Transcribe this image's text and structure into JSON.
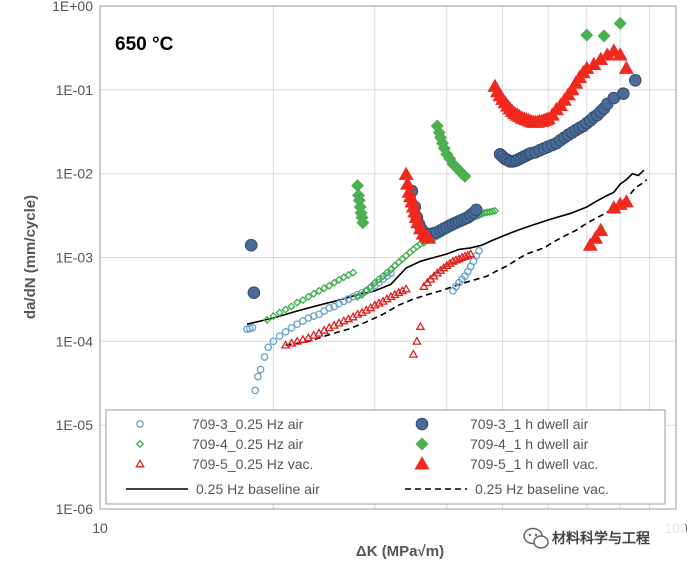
{
  "chart_data": {
    "type": "scatter",
    "title": "",
    "xlabel": "ΔK (MPa√m)",
    "ylabel": "da/dN (mm/cycle)",
    "x_scale": "log",
    "y_scale": "log",
    "xlim": [
      10,
      100
    ],
    "ylim": [
      1e-06,
      1
    ],
    "x_tick_labels": [
      "10",
      "100"
    ],
    "y_tick_labels": [
      "1E-06",
      "1E-05",
      "1E-04",
      "1E-03",
      "1E-02",
      "1E-01",
      "1E+00"
    ],
    "grid": true,
    "annotation": "650 °C",
    "legend_position": "bottom",
    "series": [
      {
        "name": "709-3_0.25 Hz air",
        "marker": "circle-open",
        "color": "#6aa0c8",
        "size": "small",
        "x": [
          18.0,
          18.2,
          18.4,
          18.6,
          18.8,
          19.0,
          19.3,
          19.6,
          20.0,
          20.5,
          21.0,
          21.5,
          22.0,
          22.5,
          23.0,
          23.5,
          24.0,
          24.5,
          25.0,
          25.5,
          26.0,
          26.5,
          27.0,
          27.5,
          28.0,
          28.5,
          29.0,
          29.5,
          30.0,
          30.5,
          31.0,
          31.5,
          32.0,
          41.0,
          41.5,
          42.0,
          42.5,
          43.0,
          43.5,
          44.0,
          44.5,
          45.0,
          45.5
        ],
        "y": [
          0.00014,
          0.000142,
          0.000145,
          2.6e-05,
          3.8e-05,
          4.6e-05,
          6.5e-05,
          8.5e-05,
          0.0001,
          0.000115,
          0.00013,
          0.000145,
          0.00016,
          0.000175,
          0.00019,
          0.0002,
          0.00021,
          0.00023,
          0.00025,
          0.00026,
          0.00028,
          0.0003,
          0.00032,
          0.00034,
          0.00036,
          0.00038,
          0.0004,
          0.00043,
          0.00046,
          0.0005,
          0.00055,
          0.0006,
          0.00065,
          0.0004,
          0.00045,
          0.0005,
          0.00055,
          0.0006,
          0.00068,
          0.00078,
          0.0009,
          0.00105,
          0.0012
        ]
      },
      {
        "name": "709-4_0.25 Hz air",
        "marker": "diamond-open",
        "color": "#3fae4a",
        "size": "small",
        "x": [
          19.5,
          20.0,
          20.5,
          21.0,
          21.5,
          22.0,
          22.5,
          23.0,
          23.5,
          24.0,
          24.5,
          25.0,
          25.5,
          26.0,
          26.5,
          27.0,
          27.5,
          28.0,
          28.5,
          29.0,
          29.5,
          30.0,
          30.5,
          31.0,
          31.5,
          32.0,
          32.5,
          33.0,
          33.5,
          34.0,
          34.5,
          35.0,
          35.5,
          36.0,
          36.5,
          37.0,
          37.5,
          38.0,
          38.5,
          39.0,
          39.5,
          40.0,
          40.5,
          41.0,
          41.5,
          42.0,
          42.5,
          43.0,
          43.5,
          44.0,
          44.5,
          45.0,
          45.5,
          46.0,
          46.5,
          47.0,
          47.5,
          48.0,
          48.5
        ],
        "y": [
          0.00018,
          0.0002,
          0.00022,
          0.00024,
          0.00026,
          0.00029,
          0.00031,
          0.00034,
          0.00037,
          0.0004,
          0.00043,
          0.00046,
          0.0005,
          0.00054,
          0.00058,
          0.00062,
          0.00066,
          0.00034,
          0.00036,
          0.0004,
          0.00045,
          0.0005,
          0.00055,
          0.0006,
          0.00066,
          0.00072,
          0.0008,
          0.00088,
          0.00096,
          0.00105,
          0.00115,
          0.00125,
          0.00135,
          0.00145,
          0.0015,
          0.0016,
          0.00165,
          0.0017,
          0.0018,
          0.0019,
          0.002,
          0.0021,
          0.0022,
          0.0023,
          0.0024,
          0.0025,
          0.0026,
          0.0027,
          0.0028,
          0.0029,
          0.003,
          0.0031,
          0.0032,
          0.0033,
          0.0034,
          0.00345,
          0.0035,
          0.00355,
          0.0036
        ]
      },
      {
        "name": "709-5_0.25 Hz vac.",
        "marker": "triangle-open",
        "color": "#e0201c",
        "size": "small",
        "x": [
          21.0,
          21.5,
          22.0,
          22.5,
          23.0,
          23.5,
          24.0,
          24.5,
          25.0,
          25.5,
          26.0,
          26.5,
          27.0,
          27.5,
          28.0,
          28.5,
          29.0,
          29.5,
          30.0,
          30.5,
          31.0,
          31.5,
          32.0,
          32.5,
          33.0,
          33.5,
          34.0,
          35.0,
          35.5,
          36.0,
          36.5,
          37.0,
          37.5,
          38.0,
          38.5,
          39.0,
          39.5,
          40.0,
          40.5,
          41.0,
          41.5,
          42.0,
          42.5,
          43.0,
          43.5,
          44.0
        ],
        "y": [
          9e-05,
          9.5e-05,
          0.0001,
          0.000105,
          0.00011,
          0.000118,
          0.000125,
          0.000135,
          0.000145,
          0.000155,
          0.000165,
          0.000175,
          0.000185,
          0.000195,
          0.00021,
          0.00022,
          0.000235,
          0.00025,
          0.00027,
          0.000285,
          0.0003,
          0.00032,
          0.00034,
          0.00036,
          0.00038,
          0.0004,
          0.00042,
          7e-05,
          0.0001,
          0.00015,
          0.00045,
          0.0005,
          0.00055,
          0.0006,
          0.00065,
          0.0007,
          0.00075,
          0.0008,
          0.00085,
          0.0009,
          0.00093,
          0.00096,
          0.001,
          0.00103,
          0.00106,
          0.0011
        ]
      },
      {
        "name": "709-3_1 h dwell air",
        "marker": "circle-filled",
        "color": "#4a6b95",
        "size": "large",
        "x": [
          18.3,
          18.5,
          34.8,
          35.2,
          35.5,
          35.8,
          36.1,
          36.5,
          37.0,
          37.5,
          38.0,
          38.5,
          39.0,
          39.5,
          40.0,
          40.5,
          41.0,
          41.5,
          42.0,
          42.5,
          43.0,
          43.5,
          44.0,
          44.5,
          45.0,
          49.5,
          50.0,
          50.5,
          51.0,
          51.5,
          52.0,
          52.5,
          53.0,
          53.5,
          54.0,
          54.5,
          55.0,
          55.5,
          56.0,
          57.0,
          58.0,
          59.0,
          60.0,
          61.0,
          62.0,
          63.0,
          64.0,
          65.0,
          66.0,
          67.0,
          68.0,
          69.0,
          70.0,
          71.0,
          72.0,
          73.0,
          74.0,
          75.0,
          76.0,
          78.0,
          81.0,
          85.0
        ],
        "y": [
          0.0014,
          0.00038,
          0.0062,
          0.004,
          0.003,
          0.0025,
          0.0022,
          0.002,
          0.0019,
          0.0019,
          0.00195,
          0.002,
          0.0021,
          0.0022,
          0.0023,
          0.0024,
          0.0025,
          0.0026,
          0.0027,
          0.0028,
          0.0029,
          0.003,
          0.0032,
          0.0034,
          0.0037,
          0.017,
          0.016,
          0.015,
          0.0145,
          0.014,
          0.014,
          0.0142,
          0.0145,
          0.015,
          0.0155,
          0.016,
          0.0165,
          0.017,
          0.0175,
          0.018,
          0.019,
          0.02,
          0.021,
          0.022,
          0.023,
          0.025,
          0.027,
          0.029,
          0.031,
          0.033,
          0.035,
          0.037,
          0.04,
          0.043,
          0.047,
          0.05,
          0.055,
          0.06,
          0.068,
          0.08,
          0.09,
          0.13
        ]
      },
      {
        "name": "709-4_1 h dwell air",
        "marker": "diamond-filled",
        "color": "#4caf50",
        "size": "large",
        "x": [
          28.0,
          28.1,
          28.2,
          28.3,
          28.4,
          28.5,
          28.6,
          38.5,
          38.8,
          39.0,
          39.3,
          39.6,
          40.0,
          40.5,
          41.0,
          41.5,
          42.0,
          42.5,
          43.0,
          70.0,
          75.0,
          80.0
        ],
        "y": [
          0.0072,
          0.0055,
          0.0048,
          0.004,
          0.0034,
          0.003,
          0.0026,
          0.037,
          0.031,
          0.027,
          0.023,
          0.02,
          0.017,
          0.015,
          0.013,
          0.012,
          0.011,
          0.01,
          0.0093,
          0.45,
          0.44,
          0.62
        ]
      },
      {
        "name": "709-5_1 h dwell vac.",
        "marker": "triangle-filled",
        "color": "#f0281e",
        "size": "large",
        "x": [
          34.0,
          34.2,
          34.4,
          34.6,
          34.8,
          35.0,
          35.2,
          35.4,
          35.6,
          36.0,
          36.4,
          36.8,
          37.2,
          48.5,
          49.0,
          49.5,
          50.0,
          50.5,
          51.0,
          51.5,
          52.0,
          52.5,
          53.0,
          53.5,
          54.0,
          54.5,
          55.0,
          55.5,
          56.0,
          56.5,
          57.0,
          57.5,
          58.0,
          58.5,
          59.0,
          59.5,
          60.0,
          61.0,
          62.0,
          63.0,
          64.0,
          65.0,
          66.0,
          67.0,
          68.0,
          69.0,
          70.0,
          72.0,
          74.0,
          76.0,
          78.0,
          80.0,
          82.0,
          71.0,
          72.5,
          74.0,
          78.0,
          80.0,
          82.0
        ],
        "y": [
          0.0098,
          0.0075,
          0.006,
          0.0053,
          0.0046,
          0.004,
          0.0035,
          0.003,
          0.0026,
          0.0022,
          0.0019,
          0.0018,
          0.0017,
          0.11,
          0.095,
          0.085,
          0.077,
          0.07,
          0.064,
          0.059,
          0.055,
          0.052,
          0.05,
          0.048,
          0.046,
          0.045,
          0.044,
          0.043,
          0.042,
          0.041,
          0.041,
          0.041,
          0.042,
          0.042,
          0.043,
          0.044,
          0.045,
          0.05,
          0.058,
          0.065,
          0.075,
          0.087,
          0.1,
          0.12,
          0.14,
          0.16,
          0.18,
          0.2,
          0.23,
          0.26,
          0.29,
          0.26,
          0.18,
          0.0014,
          0.0017,
          0.0021,
          0.0039,
          0.0043,
          0.0046
        ]
      }
    ],
    "lines": [
      {
        "name": "0.25 Hz baseline air",
        "style": "solid",
        "color": "#000000",
        "x": [
          18.0,
          20.0,
          22.0,
          24.0,
          26.0,
          28.0,
          30.0,
          32.0,
          34.0,
          36.0,
          38.0,
          40.0,
          42.0,
          44.0,
          46.0,
          48.0,
          50.0,
          52.0,
          54.0,
          56.0,
          58.0,
          60.0,
          62.0,
          64.0,
          66.0,
          68.0,
          70.0,
          72.0,
          74.0,
          76.0,
          78.0,
          80.0,
          82.0,
          84.0,
          86.0,
          88.0
        ],
        "y": [
          0.00016,
          0.00019,
          0.00023,
          0.00027,
          0.00031,
          0.00036,
          0.0004,
          0.00048,
          0.00075,
          0.0009,
          0.001,
          0.0011,
          0.00125,
          0.0013,
          0.0014,
          0.0016,
          0.0018,
          0.002,
          0.0022,
          0.0024,
          0.0026,
          0.0028,
          0.003,
          0.0032,
          0.0034,
          0.0037,
          0.004,
          0.0045,
          0.005,
          0.0055,
          0.006,
          0.0075,
          0.0085,
          0.01,
          0.0095,
          0.011
        ]
      },
      {
        "name": "0.25 Hz baseline vac.",
        "style": "dashed",
        "color": "#000000",
        "x": [
          21.0,
          23.0,
          25.0,
          27.0,
          29.0,
          31.0,
          33.0,
          35.0,
          37.0,
          39.0,
          41.0,
          43.0,
          45.0,
          47.0,
          49.0,
          51.0,
          53.0,
          55.0,
          57.0,
          59.0,
          61.0,
          63.0,
          65.0,
          67.0,
          69.0,
          71.0,
          73.0,
          75.0,
          77.0,
          79.0,
          81.0,
          83.0,
          85.0,
          87.0,
          89.0
        ],
        "y": [
          9e-05,
          0.0001,
          0.00012,
          0.00014,
          0.00017,
          0.00021,
          0.00027,
          0.00032,
          0.00036,
          0.0004,
          0.00045,
          0.0005,
          0.00055,
          0.0006,
          0.0007,
          0.0008,
          0.00095,
          0.0011,
          0.0012,
          0.0013,
          0.0015,
          0.0017,
          0.0019,
          0.0021,
          0.0024,
          0.0027,
          0.003,
          0.0033,
          0.0037,
          0.0042,
          0.0048,
          0.0055,
          0.0068,
          0.0075,
          0.0085
        ]
      }
    ]
  },
  "watermark": {
    "icon": "wechat-icon",
    "text": "材料科学与工程"
  }
}
